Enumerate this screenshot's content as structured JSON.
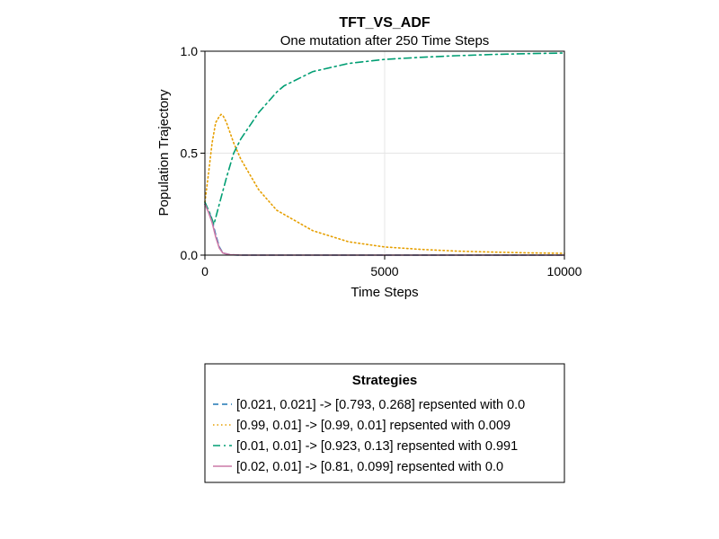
{
  "chart_data": {
    "type": "line",
    "title": "TFT_VS_ADF",
    "subtitle": "One mutation after 250 Time Steps",
    "xlabel": "Time Steps",
    "ylabel": "Population Trajectory",
    "xlim": [
      0,
      10000
    ],
    "ylim": [
      0,
      1.0
    ],
    "x_ticks": [
      0,
      5000,
      10000
    ],
    "x_tick_labels": [
      "0",
      "5000",
      "10000"
    ],
    "y_ticks": [
      0,
      0.5,
      1.0
    ],
    "y_tick_labels": [
      "0.0",
      "0.5",
      "1.0"
    ],
    "grid": true,
    "legend_title": "Strategies",
    "legend_placement": "below",
    "series": [
      {
        "name": "[0.021, 0.021] -> [0.793, 0.268] repsented with 0.0",
        "color": "#1f77b4",
        "dash": "dash",
        "x": [
          0,
          100,
          200,
          300,
          400,
          500,
          700,
          1000,
          2000,
          5000,
          10000
        ],
        "y": [
          0.25,
          0.22,
          0.17,
          0.1,
          0.04,
          0.01,
          0.002,
          0,
          0,
          0,
          0
        ]
      },
      {
        "name": "[0.99, 0.01] -> [0.99, 0.01] repsented with 0.009",
        "color": "#e69f00",
        "dash": "dot",
        "x": [
          0,
          100,
          200,
          300,
          400,
          450,
          500,
          600,
          800,
          1000,
          1500,
          2000,
          3000,
          4000,
          5000,
          6000,
          7000,
          8000,
          9000,
          10000
        ],
        "y": [
          0.26,
          0.4,
          0.55,
          0.65,
          0.68,
          0.69,
          0.685,
          0.65,
          0.55,
          0.47,
          0.32,
          0.22,
          0.12,
          0.065,
          0.04,
          0.028,
          0.02,
          0.015,
          0.011,
          0.009
        ]
      },
      {
        "name": "[0.01, 0.01] -> [0.923, 0.13] repsented with 0.991",
        "color": "#009e73",
        "dash": "dashdot",
        "x": [
          0,
          150,
          250,
          400,
          600,
          800,
          1000,
          1500,
          2000,
          2200,
          3000,
          4000,
          5000,
          6000,
          7000,
          8000,
          9000,
          10000
        ],
        "y": [
          0.26,
          0.2,
          0.15,
          0.25,
          0.38,
          0.5,
          0.57,
          0.7,
          0.8,
          0.83,
          0.9,
          0.94,
          0.96,
          0.97,
          0.978,
          0.984,
          0.988,
          0.991
        ]
      },
      {
        "name": "[0.02, 0.01] -> [0.81, 0.099] repsented with 0.0",
        "color": "#cc79a7",
        "dash": "solid",
        "x": [
          0,
          100,
          200,
          300,
          400,
          500,
          700,
          1000,
          2000,
          5000,
          10000
        ],
        "y": [
          0.25,
          0.21,
          0.16,
          0.09,
          0.035,
          0.01,
          0.002,
          0,
          0,
          0,
          0
        ]
      }
    ]
  }
}
